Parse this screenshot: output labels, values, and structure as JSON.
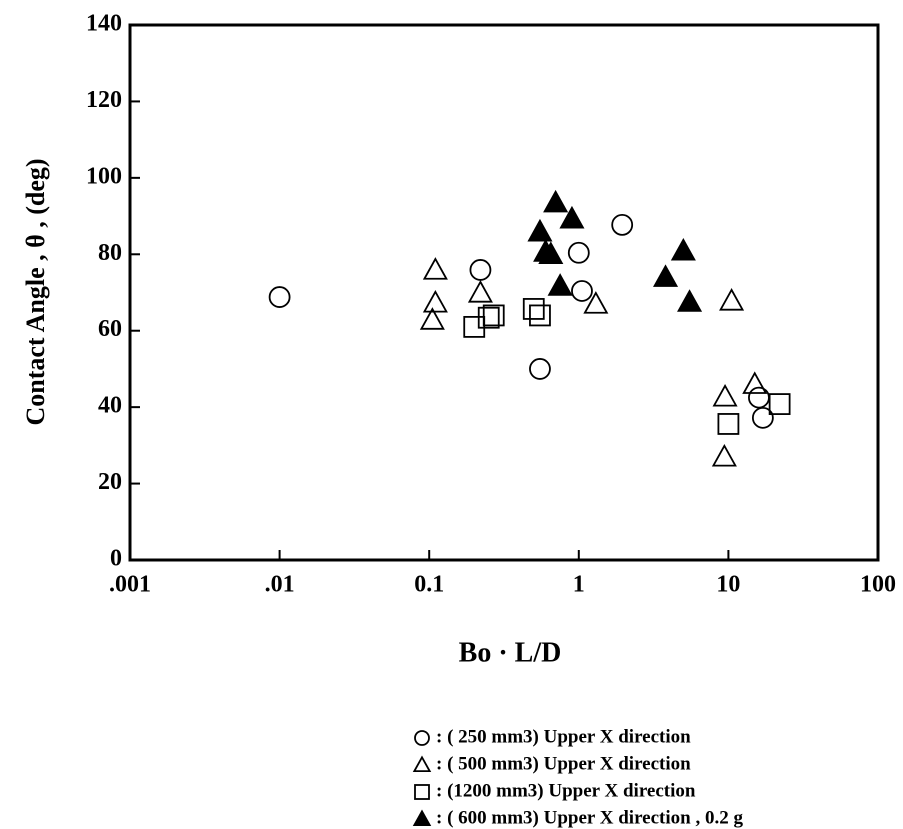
{
  "chart_data": {
    "type": "scatter",
    "ylabel": "Contact Angle , θ , (deg)",
    "xlabel": "Bo · L/D",
    "xscale": "log",
    "xlim": [
      0.001,
      100
    ],
    "xticks": [
      {
        "value": 0.001,
        "label": ".001"
      },
      {
        "value": 0.01,
        "label": ".01"
      },
      0.1,
      1,
      10,
      100
    ],
    "ylim": [
      0,
      140
    ],
    "yticks": [
      0,
      20,
      40,
      60,
      80,
      100,
      120,
      140
    ],
    "grid": false,
    "legend": "bottom",
    "series": [
      {
        "name": ": ( 250 mm3) Upper X direction",
        "color": "#000000",
        "marker": "circle",
        "filled": false,
        "x": [
          0.01,
          0.22,
          1.0,
          1.05,
          1.95,
          0.55,
          17,
          16
        ],
        "values": [
          68.8,
          75.9,
          80.4,
          70.4,
          87.7,
          50,
          37.2,
          42.5
        ]
      },
      {
        "name": ": ( 500 mm3) Upper X direction",
        "color": "#000000",
        "marker": "triangle",
        "filled": false,
        "x": [
          0.11,
          0.11,
          0.105,
          0.22,
          1.3,
          10.5,
          9.5,
          9.4,
          15
        ],
        "values": [
          75.9,
          67.3,
          62.8,
          69.9,
          67,
          67.8,
          42.7,
          27,
          46
        ]
      },
      {
        "name": ": (1200 mm3) Upper X direction",
        "color": "#000000",
        "marker": "square",
        "filled": false,
        "x": [
          0.2,
          0.25,
          0.27,
          0.5,
          0.55,
          10,
          22
        ],
        "values": [
          61,
          63.4,
          64,
          65.7,
          64,
          35.6,
          40.8
        ]
      },
      {
        "name": ": ( 600 mm3) Upper X direction , 0.2 g",
        "color": "#000000",
        "marker": "triangle",
        "filled": true,
        "x": [
          0.7,
          0.55,
          0.9,
          0.6,
          0.65,
          0.75,
          3.8,
          5,
          5.5
        ],
        "values": [
          93.5,
          85.9,
          89.3,
          80.6,
          80,
          71.7,
          74,
          80.9,
          67.5
        ]
      }
    ]
  }
}
